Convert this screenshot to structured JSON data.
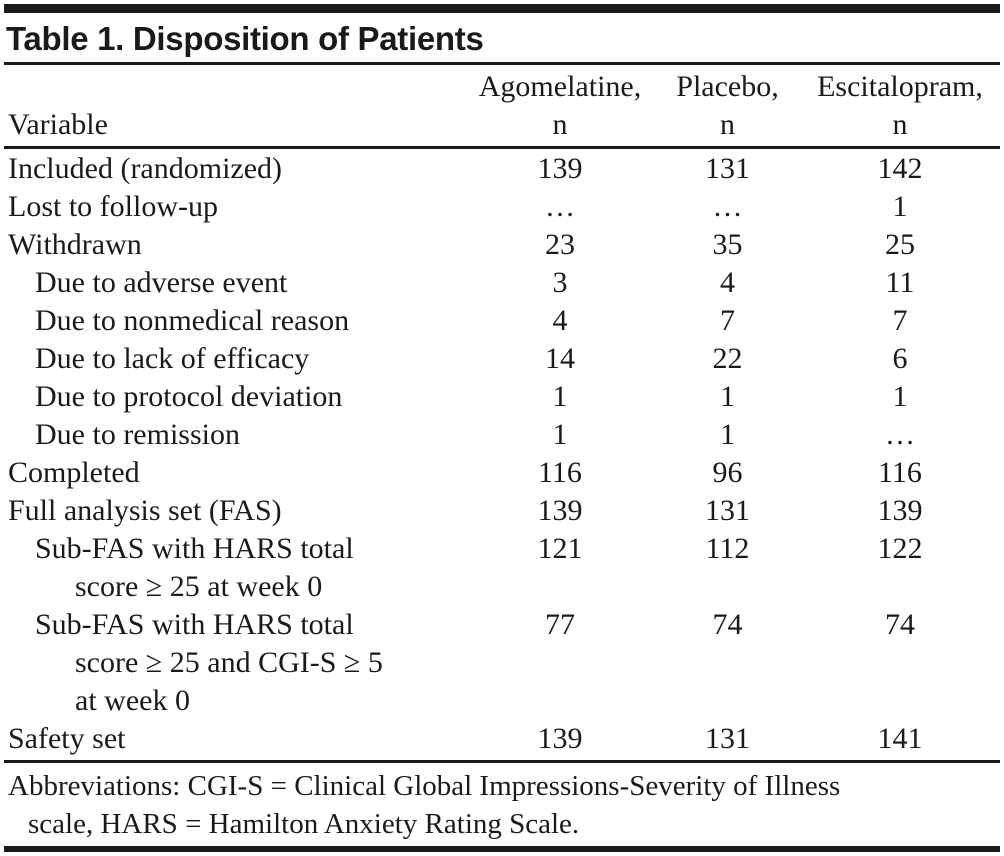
{
  "title": "Table 1. Disposition of Patients",
  "colors": {
    "text": "#1a1a1a",
    "rule": "#1a1a1a",
    "background": "#ffffff"
  },
  "table": {
    "variable_header": "Variable",
    "columns": [
      {
        "name": "Agomelatine,",
        "unit": "n"
      },
      {
        "name": "Placebo,",
        "unit": "n"
      },
      {
        "name": "Escitalopram,",
        "unit": "n"
      }
    ],
    "rows": [
      {
        "lines": [
          "Included (randomized)"
        ],
        "indent": 0,
        "values": [
          "139",
          "131",
          "142"
        ]
      },
      {
        "lines": [
          "Lost to follow-up"
        ],
        "indent": 0,
        "values": [
          "…",
          "…",
          "1"
        ]
      },
      {
        "lines": [
          "Withdrawn"
        ],
        "indent": 0,
        "values": [
          "23",
          "35",
          "25"
        ]
      },
      {
        "lines": [
          "Due to adverse event"
        ],
        "indent": 1,
        "values": [
          "3",
          "4",
          "11"
        ]
      },
      {
        "lines": [
          "Due to nonmedical reason"
        ],
        "indent": 1,
        "values": [
          "4",
          "7",
          "7"
        ]
      },
      {
        "lines": [
          "Due to lack of efficacy"
        ],
        "indent": 1,
        "values": [
          "14",
          "22",
          "6"
        ]
      },
      {
        "lines": [
          "Due to protocol deviation"
        ],
        "indent": 1,
        "values": [
          "1",
          "1",
          "1"
        ]
      },
      {
        "lines": [
          "Due to remission"
        ],
        "indent": 1,
        "values": [
          "1",
          "1",
          "…"
        ]
      },
      {
        "lines": [
          "Completed"
        ],
        "indent": 0,
        "values": [
          "116",
          "96",
          "116"
        ]
      },
      {
        "lines": [
          "Full analysis set (FAS)"
        ],
        "indent": 0,
        "values": [
          "139",
          "131",
          "139"
        ]
      },
      {
        "lines": [
          "Sub-FAS with HARS total",
          "score ≥ 25 at week 0"
        ],
        "indent": 1,
        "values": [
          "121",
          "112",
          "122"
        ]
      },
      {
        "lines": [
          "Sub-FAS with HARS total",
          "score ≥ 25 and CGI-S ≥ 5",
          "at week 0"
        ],
        "indent": 1,
        "values": [
          "77",
          "74",
          "74"
        ]
      },
      {
        "lines": [
          "Safety set"
        ],
        "indent": 0,
        "values": [
          "139",
          "131",
          "141"
        ]
      }
    ]
  },
  "footnote": {
    "lines": [
      "Abbreviations: CGI-S = Clinical Global Impressions-Severity of Illness",
      "scale, HARS = Hamilton Anxiety Rating Scale."
    ]
  }
}
